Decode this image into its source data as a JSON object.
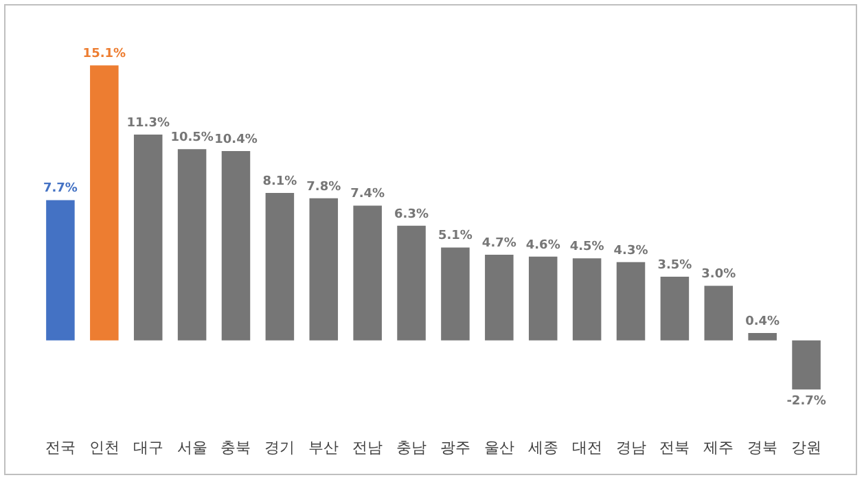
{
  "chart_data": {
    "type": "bar",
    "categories": [
      "전국",
      "인천",
      "대구",
      "서울",
      "충북",
      "경기",
      "부산",
      "전남",
      "충남",
      "광주",
      "울산",
      "세종",
      "대전",
      "경남",
      "전북",
      "제주",
      "경북",
      "강원"
    ],
    "values": [
      7.7,
      15.1,
      11.3,
      10.5,
      10.4,
      8.1,
      7.8,
      7.4,
      6.3,
      5.1,
      4.7,
      4.6,
      4.5,
      4.3,
      3.5,
      3.0,
      0.4,
      -2.7
    ],
    "value_labels": [
      "7.7%",
      "15.1%",
      "11.3%",
      "10.5%",
      "10.4%",
      "8.1%",
      "7.8%",
      "7.4%",
      "6.3%",
      "5.1%",
      "4.7%",
      "4.6%",
      "4.5%",
      "4.3%",
      "3.5%",
      "3.0%",
      "0.4%",
      "-2.7%"
    ],
    "colors": [
      "#4472c4",
      "#ed7d31",
      "#767676",
      "#767676",
      "#767676",
      "#767676",
      "#767676",
      "#767676",
      "#767676",
      "#767676",
      "#767676",
      "#767676",
      "#767676",
      "#767676",
      "#767676",
      "#767676",
      "#767676",
      "#767676"
    ]
  }
}
